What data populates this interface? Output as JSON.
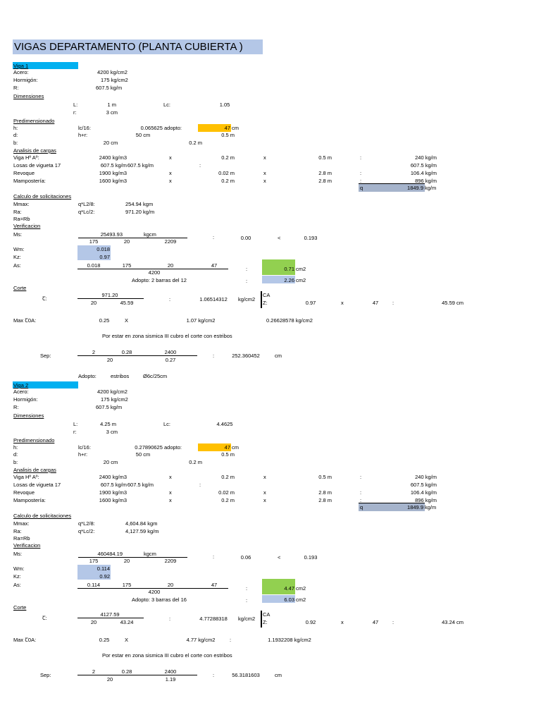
{
  "title": "VIGAS DEPARTAMENTO (PLANTA CUBIERTA )",
  "colors": {
    "title_bg": "#b4c7e7",
    "viga_tab": "#00b0f0",
    "orange": "#ffc000",
    "green": "#92d050",
    "blue_cell": "#b4c7e7",
    "gray_cell": "#a6b4cc"
  },
  "beams": [
    {
      "name": "Viga 1",
      "acero": "4200 kg/cm2",
      "hormigon": "175 kg/cm2",
      "r": "607.5 kg/m",
      "L_val": "1 m",
      "Lc_val": "1.05",
      "r_val": "3 cm",
      "h_formula": "lc/16:",
      "h_calc": "0.065625 adopto:",
      "h_adopt": "47",
      "h_unit": "cm",
      "d_formula": "h+r:",
      "d_calc": "50 cm",
      "d_m": "0.5 m",
      "b_val": "20 cm",
      "b_m": "0.2 m",
      "loads": [
        {
          "label": "Viga Hº Aº:",
          "a": "2400 kg/m3",
          "op1": "x",
          "b": "0.2 m",
          "op2": "x",
          "c": "0.5 m",
          "eq": ":",
          "res": "240 kg/m"
        },
        {
          "label": "Losas de vigueta 17",
          "a": "607.5 kg/m",
          "op1": "",
          "b": "",
          "op2": "",
          "c": "",
          "eq": ":",
          "res": "607.5 kg/m"
        },
        {
          "label": "Revoque",
          "a": "1900 kg/m3",
          "op1": "x",
          "b": "0.02 m",
          "op2": "x",
          "c": "2.8 m",
          "eq": ":",
          "res": "106.4 kg/m"
        },
        {
          "label": "Mampostería:",
          "a": "1600 kg/m3",
          "op1": "x",
          "b": "0.2 m",
          "op2": "x",
          "c": "2.8 m",
          "eq": ":",
          "res": "896 kg/m"
        }
      ],
      "q_label": "q",
      "q_val": "1849.9",
      "q_unit": "kg/m",
      "mmax_formula": "q*L2/8:",
      "mmax_val": "254.94 kgm",
      "ra_formula": "q*Lc/2:",
      "ra_val": "971.20 kg/m",
      "ms_num": "25493.93",
      "ms_unit": "kgcm",
      "ms_d1": "175",
      "ms_d2": "20",
      "ms_d3": "2209",
      "ms_res": "0.00",
      "ms_cmp": "<",
      "ms_lim": "0.193",
      "wm": "0.018",
      "kz": "0.97",
      "as_n1": "0.018",
      "as_n2": "175",
      "as_n3": "20",
      "as_n4": "47",
      "as_den": "4200",
      "as_res": "0.71",
      "as_unit": "cm2",
      "adopto_text": "Adopto: 2  barras del 12",
      "adopto_val": "2.26",
      "adopto_unit": "cm2",
      "tau_sym": "Ꞇ:",
      "tau_num": "971.20",
      "tau_d1": "20",
      "tau_d2": "45.59",
      "tau_val": "1.06514312",
      "tau_unit": "kg/cm2",
      "ca": "CA",
      "z": "Z:",
      "z_val": "0.97",
      "z_x": "x",
      "z_d": "47",
      "z_res": "45.59 cm",
      "max_label": "Max Ꞇ0A:",
      "max_a": "0.25",
      "max_x": "X",
      "max_b": "1.07 kg/cm2",
      "max_colon": "",
      "max_res": "0.26628578 kg/cm2",
      "zona_text": "Por estar en zona sismica III cubro el corte con estribos",
      "sep_label": "Sep:",
      "sep_n1": "2",
      "sep_n2": "0.28",
      "sep_n3": "2400",
      "sep_d1": "20",
      "sep_d2": "0.27",
      "sep_val": "252.360452",
      "sep_unit": "cm",
      "adopto2_a": "Adopto:",
      "adopto2_b": "estribos",
      "adopto2_c": "Ø6c/25cm"
    },
    {
      "name": "Viga 2",
      "acero": "4200 kg/cm2",
      "hormigon": "175 kg/cm2",
      "r": "607.5 kg/m",
      "L_val": "4.25 m",
      "Lc_val": "4.4625",
      "r_val": "3 cm",
      "h_formula": "lc/16:",
      "h_calc": "0.27890625 adopto:",
      "h_adopt": "47",
      "h_unit": "cm",
      "d_formula": "h+r:",
      "d_calc": "50 cm",
      "d_m": "0.5 m",
      "b_val": "20 cm",
      "b_m": "0.2 m",
      "loads": [
        {
          "label": "Viga Hº Aº:",
          "a": "2400 kg/m3",
          "op1": "x",
          "b": "0.2 m",
          "op2": "x",
          "c": "0.5 m",
          "eq": ":",
          "res": "240 kg/m"
        },
        {
          "label": "Losas de vigueta 17",
          "a": "607.5 kg/m",
          "op1": "",
          "b": "",
          "op2": "",
          "c": "",
          "eq": ":",
          "res": "607.5 kg/m"
        },
        {
          "label": "Revoque",
          "a": "1900 kg/m3",
          "op1": "x",
          "b": "0.02 m",
          "op2": "x",
          "c": "2.8 m",
          "eq": ":",
          "res": "106.4 kg/m"
        },
        {
          "label": "Mampostería:",
          "a": "1600 kg/m3",
          "op1": "x",
          "b": "0.2 m",
          "op2": "x",
          "c": "2.8 m",
          "eq": ":",
          "res": "896 kg/m"
        }
      ],
      "q_label": "q",
      "q_val": "1849.9",
      "q_unit": "kg/m",
      "mmax_formula": "q*L2/8:",
      "mmax_val": "4,604.84 kgm",
      "ra_formula": "q*Lc/2:",
      "ra_val": "4,127.59 kg/m",
      "ms_num": "460484.19",
      "ms_unit": "kgcm",
      "ms_d1": "175",
      "ms_d2": "20",
      "ms_d3": "2209",
      "ms_res": "0.06",
      "ms_cmp": "<",
      "ms_lim": "0.193",
      "wm": "0.114",
      "kz": "0.92",
      "as_n1": "0.114",
      "as_n2": "175",
      "as_n3": "20",
      "as_n4": "47",
      "as_den": "4200",
      "as_res": "4.47",
      "as_unit": "cm2",
      "adopto_text": "Adopto: 3 barras del 16",
      "adopto_val": "6.03",
      "adopto_unit": "cm2",
      "tau_sym": "Ꞇ:",
      "tau_num": "4127.59",
      "tau_d1": "20",
      "tau_d2": "43.24",
      "tau_val": "4.77288318",
      "tau_unit": "kg/cm2",
      "ca": "CA",
      "z": "Z:",
      "z_val": "0.92",
      "z_x": "x",
      "z_d": "47",
      "z_res": "43.24 cm",
      "max_label": "Max Ꞇ0A:",
      "max_a": "0.25",
      "max_x": "X",
      "max_b": "4.77 kg/cm2",
      "max_colon": ":",
      "max_res": "1.1932208 kg/cm2",
      "zona_text": "Por estar en zona sismica III cubro el corte con estribos",
      "sep_label": "Sep:",
      "sep_n1": "2",
      "sep_n2": "0.28",
      "sep_n3": "2400",
      "sep_d1": "20",
      "sep_d2": "1.19",
      "sep_val": "56.3181603",
      "sep_unit": "cm",
      "adopto2_a": "",
      "adopto2_b": "",
      "adopto2_c": ""
    }
  ],
  "labels": {
    "acero": "Acero:",
    "hormigon": "Hormigón:",
    "r": "R:",
    "dimensiones": "Dimensiones",
    "L": "L:",
    "Lc": "Lc:",
    "r_small": "r:",
    "predimensionado": "Predimensionado",
    "h": "h:",
    "d": "d:",
    "b": "b:",
    "analisis": "Analisis de cargas",
    "calculo": "Calculo de solicitaciones",
    "mmax": "Mmax:",
    "ra": "Ra:",
    "rarb": "Ra=Rb",
    "verificacion": "Verificacion",
    "ms": "Ms:",
    "wm": "Wm:",
    "kz": "Kz:",
    "as": "As:",
    "colon": ":",
    "corte": "Corte"
  }
}
